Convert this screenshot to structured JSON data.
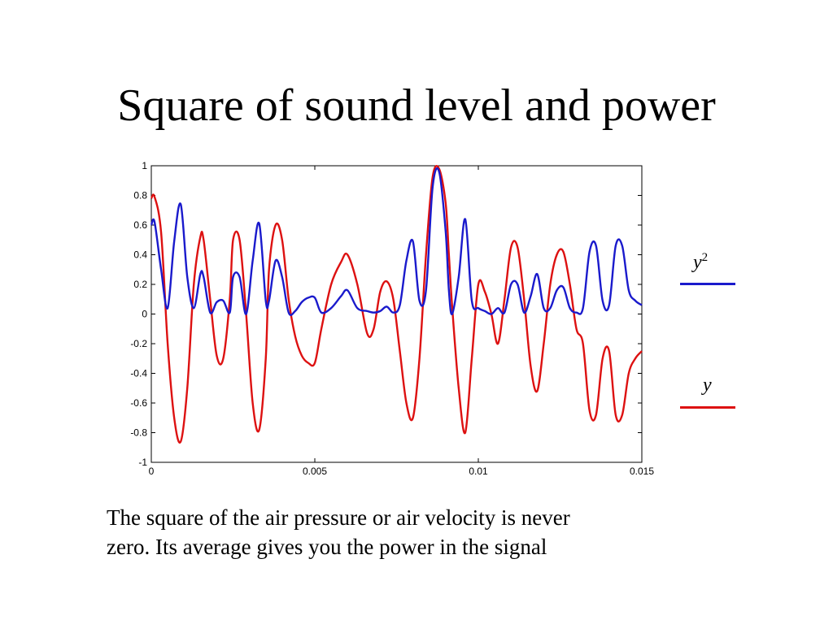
{
  "title": "Square of sound level and power",
  "caption_lines": [
    "The square of the air pressure or air velocity is never",
    "zero.  Its average gives you the power in the signal"
  ],
  "legend": [
    {
      "label": "y",
      "superscript": "2",
      "color": "#1a1acc"
    },
    {
      "label": "y",
      "superscript": "",
      "color": "#dd1111"
    }
  ],
  "chart_data": {
    "type": "line",
    "xlim": [
      0,
      0.015
    ],
    "ylim": [
      -1,
      1
    ],
    "x_ticks": [
      {
        "value": 0,
        "label": "0"
      },
      {
        "value": 0.005,
        "label": "0.005"
      },
      {
        "value": 0.01,
        "label": "0.01"
      },
      {
        "value": 0.015,
        "label": "0.015"
      }
    ],
    "y_ticks": [
      {
        "value": 1,
        "label": "1"
      },
      {
        "value": 0.8,
        "label": "0.8"
      },
      {
        "value": 0.6,
        "label": "0.6"
      },
      {
        "value": 0.4,
        "label": "0.4"
      },
      {
        "value": 0.2,
        "label": "0.2"
      },
      {
        "value": 0,
        "label": "0"
      },
      {
        "value": -0.2,
        "label": "-0.2"
      },
      {
        "value": -0.4,
        "label": "-0.4"
      },
      {
        "value": -0.6,
        "label": "-0.6"
      },
      {
        "value": -0.8,
        "label": "-0.8"
      },
      {
        "value": -1,
        "label": "-1"
      }
    ],
    "grid": false,
    "legend_position": "right",
    "series": [
      {
        "name": "y",
        "color": "#dd1111",
        "x": [
          0,
          0.0001,
          0.0003,
          0.0005,
          0.0007,
          0.0009,
          0.0011,
          0.0013,
          0.0015,
          0.0016,
          0.0018,
          0.002,
          0.0022,
          0.0024,
          0.0025,
          0.0027,
          0.0029,
          0.0031,
          0.0033,
          0.0035,
          0.0036,
          0.0038,
          0.004,
          0.0042,
          0.0044,
          0.0046,
          0.0048,
          0.005,
          0.0052,
          0.0055,
          0.0058,
          0.006,
          0.0063,
          0.0066,
          0.0068,
          0.007,
          0.0072,
          0.0074,
          0.0076,
          0.0078,
          0.008,
          0.0082,
          0.0084,
          0.0086,
          0.0088,
          0.009,
          0.0091,
          0.0092,
          0.0094,
          0.0096,
          0.0098,
          0.01,
          0.0102,
          0.0104,
          0.0106,
          0.0108,
          0.011,
          0.0112,
          0.0114,
          0.0116,
          0.0118,
          0.012,
          0.0122,
          0.0124,
          0.0126,
          0.0128,
          0.013,
          0.0132,
          0.0134,
          0.0136,
          0.0138,
          0.014,
          0.0142,
          0.0144,
          0.0146,
          0.0148,
          0.015
        ],
        "y": [
          0.78,
          0.79,
          0.55,
          -0.2,
          -0.7,
          -0.86,
          -0.5,
          0.2,
          0.52,
          0.5,
          0.1,
          -0.28,
          -0.3,
          0.1,
          0.5,
          0.5,
          0.0,
          -0.6,
          -0.78,
          -0.3,
          0.3,
          0.6,
          0.5,
          0.1,
          -0.15,
          -0.28,
          -0.33,
          -0.33,
          -0.1,
          0.2,
          0.35,
          0.4,
          0.2,
          -0.13,
          -0.1,
          0.15,
          0.22,
          0.1,
          -0.25,
          -0.6,
          -0.7,
          -0.3,
          0.4,
          0.92,
          0.98,
          0.75,
          0.4,
          0.05,
          -0.5,
          -0.8,
          -0.3,
          0.2,
          0.15,
          0.0,
          -0.2,
          0.1,
          0.45,
          0.45,
          0.1,
          -0.35,
          -0.52,
          -0.2,
          0.2,
          0.4,
          0.42,
          0.2,
          -0.1,
          -0.2,
          -0.65,
          -0.68,
          -0.3,
          -0.25,
          -0.68,
          -0.68,
          -0.4,
          -0.3,
          -0.25
        ]
      },
      {
        "name": "y2",
        "color": "#1a1acc",
        "x": [
          0,
          0.0001,
          0.0003,
          0.0005,
          0.0007,
          0.0009,
          0.0011,
          0.0013,
          0.0015,
          0.0016,
          0.0018,
          0.002,
          0.0022,
          0.0024,
          0.0025,
          0.0027,
          0.0029,
          0.0031,
          0.0033,
          0.0035,
          0.0036,
          0.0038,
          0.004,
          0.0042,
          0.0044,
          0.0046,
          0.0048,
          0.005,
          0.0052,
          0.0055,
          0.0058,
          0.006,
          0.0063,
          0.0066,
          0.0068,
          0.007,
          0.0072,
          0.0074,
          0.0076,
          0.0078,
          0.008,
          0.0082,
          0.0084,
          0.0086,
          0.0088,
          0.009,
          0.0091,
          0.0092,
          0.0094,
          0.0096,
          0.0098,
          0.01,
          0.0102,
          0.0104,
          0.0106,
          0.0108,
          0.011,
          0.0112,
          0.0114,
          0.0116,
          0.0118,
          0.012,
          0.0122,
          0.0124,
          0.0126,
          0.0128,
          0.013,
          0.0132,
          0.0134,
          0.0136,
          0.0138,
          0.014,
          0.0142,
          0.0144,
          0.0146,
          0.0148,
          0.015
        ],
        "y": [
          0.6,
          0.62,
          0.3,
          0.04,
          0.49,
          0.74,
          0.25,
          0.04,
          0.27,
          0.25,
          0.01,
          0.08,
          0.09,
          0.01,
          0.25,
          0.25,
          0.0,
          0.36,
          0.61,
          0.09,
          0.09,
          0.36,
          0.25,
          0.01,
          0.02,
          0.08,
          0.11,
          0.11,
          0.01,
          0.04,
          0.12,
          0.16,
          0.04,
          0.02,
          0.01,
          0.02,
          0.05,
          0.01,
          0.06,
          0.36,
          0.49,
          0.09,
          0.16,
          0.85,
          0.96,
          0.56,
          0.16,
          0.0,
          0.25,
          0.64,
          0.09,
          0.04,
          0.02,
          0.0,
          0.04,
          0.01,
          0.2,
          0.2,
          0.01,
          0.12,
          0.27,
          0.04,
          0.04,
          0.16,
          0.18,
          0.04,
          0.01,
          0.04,
          0.42,
          0.46,
          0.09,
          0.06,
          0.46,
          0.46,
          0.16,
          0.09,
          0.06
        ]
      }
    ]
  }
}
